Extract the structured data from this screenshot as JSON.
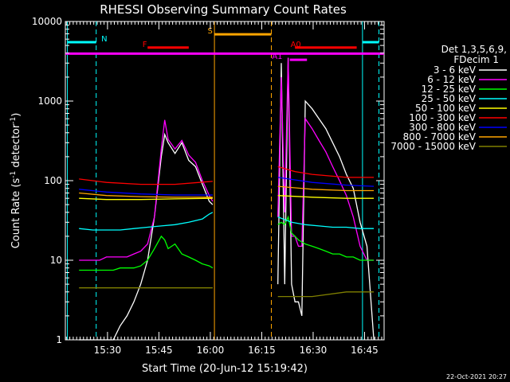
{
  "chart_data": {
    "type": "line",
    "title": "RHESSI Observing Summary Count Rates",
    "xlabel": "Start Time (20-Jun-12 15:19:42)",
    "ylabel_main": "Count Rate (s",
    "ylabel_sup1": "-1",
    "ylabel_mid": " detector",
    "ylabel_sup2": "-1",
    "ylabel_end": ")",
    "footer": "22-Oct-2021 20:27",
    "yscale": "log",
    "ylim": [
      1,
      10000
    ],
    "xlim_min": [
      -2,
      91
    ],
    "x_unit": "minutes after 15:19:42",
    "x_ticks": [
      {
        "label": "15:30",
        "min": 10.3
      },
      {
        "label": "15:45",
        "min": 25.3
      },
      {
        "label": "16:00",
        "min": 40.3
      },
      {
        "label": "16:15",
        "min": 55.3
      },
      {
        "label": "16:30",
        "min": 70.3
      },
      {
        "label": "16:45",
        "min": 85.3
      }
    ],
    "y_ticks": [
      {
        "label": "1",
        "v": 1
      },
      {
        "label": "10",
        "v": 10
      },
      {
        "label": "100",
        "v": 100
      },
      {
        "label": "1000",
        "v": 1000
      },
      {
        "label": "10000",
        "v": 10000
      }
    ],
    "legend_header": [
      "Det 1,3,5,6,9,",
      "FDecim 1"
    ],
    "series": [
      {
        "name": "3 - 6 keV",
        "color": "#ffffff",
        "x": [
          2,
          4,
          6,
          8,
          10,
          12,
          14,
          16,
          18,
          20,
          22,
          24,
          26,
          27,
          28,
          30,
          32,
          34,
          36,
          38,
          40,
          41,
          60,
          61,
          62,
          63,
          64,
          65,
          66,
          67,
          68,
          70,
          72,
          74,
          76,
          78,
          80,
          82,
          84,
          86,
          88
        ],
        "y": [
          1,
          1,
          1,
          1,
          1,
          1,
          1.5,
          2,
          3,
          5,
          10,
          35,
          200,
          380,
          300,
          220,
          300,
          180,
          150,
          90,
          55,
          50,
          5,
          3000,
          5,
          3500,
          5,
          3,
          3,
          2,
          1000,
          800,
          600,
          450,
          300,
          200,
          120,
          80,
          30,
          15,
          1
        ]
      },
      {
        "name": "6 - 12 keV",
        "color": "#ff00ff",
        "x": [
          2,
          4,
          6,
          8,
          10,
          12,
          14,
          16,
          18,
          20,
          22,
          24,
          26,
          27,
          28,
          30,
          32,
          34,
          36,
          38,
          40,
          41,
          60,
          61,
          62,
          63,
          64,
          65,
          66,
          67,
          68,
          70,
          72,
          74,
          76,
          78,
          80,
          82,
          84,
          86,
          88
        ],
        "y": [
          10,
          10,
          10,
          10,
          11,
          11,
          11,
          11,
          12,
          13,
          16,
          35,
          250,
          580,
          330,
          250,
          320,
          210,
          170,
          100,
          65,
          55,
          35,
          2000,
          40,
          3500,
          20,
          20,
          15,
          15,
          600,
          450,
          320,
          230,
          150,
          100,
          65,
          35,
          15,
          10,
          10
        ]
      },
      {
        "name": "12 - 25 keV",
        "color": "#00ff00",
        "x": [
          2,
          4,
          6,
          8,
          10,
          12,
          14,
          16,
          18,
          20,
          22,
          24,
          26,
          27,
          28,
          30,
          32,
          34,
          36,
          38,
          40,
          41,
          60,
          61,
          62,
          63,
          64,
          65,
          66,
          67,
          68,
          70,
          72,
          74,
          76,
          78,
          80,
          82,
          84,
          86,
          88
        ],
        "y": [
          7.5,
          7.5,
          7.5,
          7.5,
          7.5,
          7.5,
          8,
          8,
          8,
          8.5,
          10,
          14,
          20,
          18,
          14,
          16,
          12,
          11,
          10,
          9,
          8.5,
          8,
          28,
          30,
          28,
          35,
          22,
          20,
          18,
          17,
          16,
          15,
          14,
          13,
          12,
          12,
          11,
          11,
          10,
          10,
          10
        ]
      },
      {
        "name": "25 - 50 keV",
        "color": "#00ffff",
        "x": [
          2,
          6,
          10,
          14,
          18,
          22,
          26,
          30,
          34,
          38,
          40,
          41,
          60,
          64,
          68,
          72,
          76,
          80,
          84,
          88
        ],
        "y": [
          25,
          24,
          24,
          24,
          25,
          26,
          27,
          28,
          30,
          33,
          38,
          40,
          35,
          30,
          28,
          27,
          26,
          26,
          25,
          25
        ]
      },
      {
        "name": "50 - 100 keV",
        "color": "#ffff00",
        "x": [
          2,
          10,
          20,
          30,
          41,
          60,
          70,
          80,
          88
        ],
        "y": [
          60,
          58,
          58,
          59,
          60,
          65,
          62,
          60,
          60
        ]
      },
      {
        "name": "100 - 300 keV",
        "color": "#ff0000",
        "x": [
          2,
          10,
          20,
          30,
          41,
          60,
          65,
          70,
          80,
          88
        ],
        "y": [
          105,
          95,
          90,
          90,
          98,
          150,
          130,
          120,
          110,
          110
        ]
      },
      {
        "name": "300 - 800 keV",
        "color": "#0000ff",
        "x": [
          2,
          10,
          20,
          30,
          41,
          60,
          70,
          80,
          88
        ],
        "y": [
          78,
          72,
          68,
          66,
          66,
          110,
          95,
          88,
          85
        ]
      },
      {
        "name": "800 - 7000 keV",
        "color": "#ffa500",
        "x": [
          2,
          10,
          20,
          30,
          41,
          60,
          70,
          80,
          88
        ],
        "y": [
          70,
          65,
          63,
          62,
          62,
          85,
          78,
          75,
          75
        ]
      },
      {
        "name": "7000 - 15000 keV",
        "color": "#808000",
        "x": [
          2,
          10,
          20,
          30,
          41,
          60,
          70,
          80,
          88
        ],
        "y": [
          4.5,
          4.5,
          4.5,
          4.5,
          4.5,
          3.5,
          3.5,
          4,
          4
        ]
      }
    ],
    "vlines": [
      {
        "min": -1.4,
        "color": "#00ffff",
        "dash": false
      },
      {
        "min": 7.0,
        "color": "#00ffff",
        "dash": true
      },
      {
        "min": 41.5,
        "color": "#ffa500",
        "dash": false
      },
      {
        "min": 58.1,
        "color": "#ffa500",
        "dash": true
      },
      {
        "min": 84.7,
        "color": "#00ffff",
        "dash": false
      },
      {
        "min": 89.5,
        "color": "#00ffff",
        "dash": true
      }
    ],
    "annotations": [
      {
        "label": "N",
        "color": "#00ffff",
        "x0": -1.4,
        "x1": 7.0,
        "y": 5500,
        "label_min": 8.5
      },
      {
        "label": "F",
        "color": "#ff0000",
        "x0": 22,
        "x1": 34,
        "y": 4700,
        "label_min": 20.5
      },
      {
        "label": "S",
        "color": "#ffa500",
        "x0": 41.5,
        "x1": 58.1,
        "y": 6900,
        "label_min": 39.5
      },
      {
        "label": "A0",
        "color": "#ff0000",
        "x0": 65,
        "x1": 83,
        "y": 4700,
        "label_min": 63.7
      },
      {
        "label": "A1",
        "color": "#ff00ff",
        "x0": 63.5,
        "x1": 68.5,
        "y": 3300,
        "label_min": 58.3
      },
      {
        "label": "",
        "color": "#00ffff",
        "x0": 84.7,
        "x1": 89.5,
        "y": 5500,
        "label_min": 0
      }
    ],
    "gap": [
      41.5,
      59.5
    ]
  }
}
